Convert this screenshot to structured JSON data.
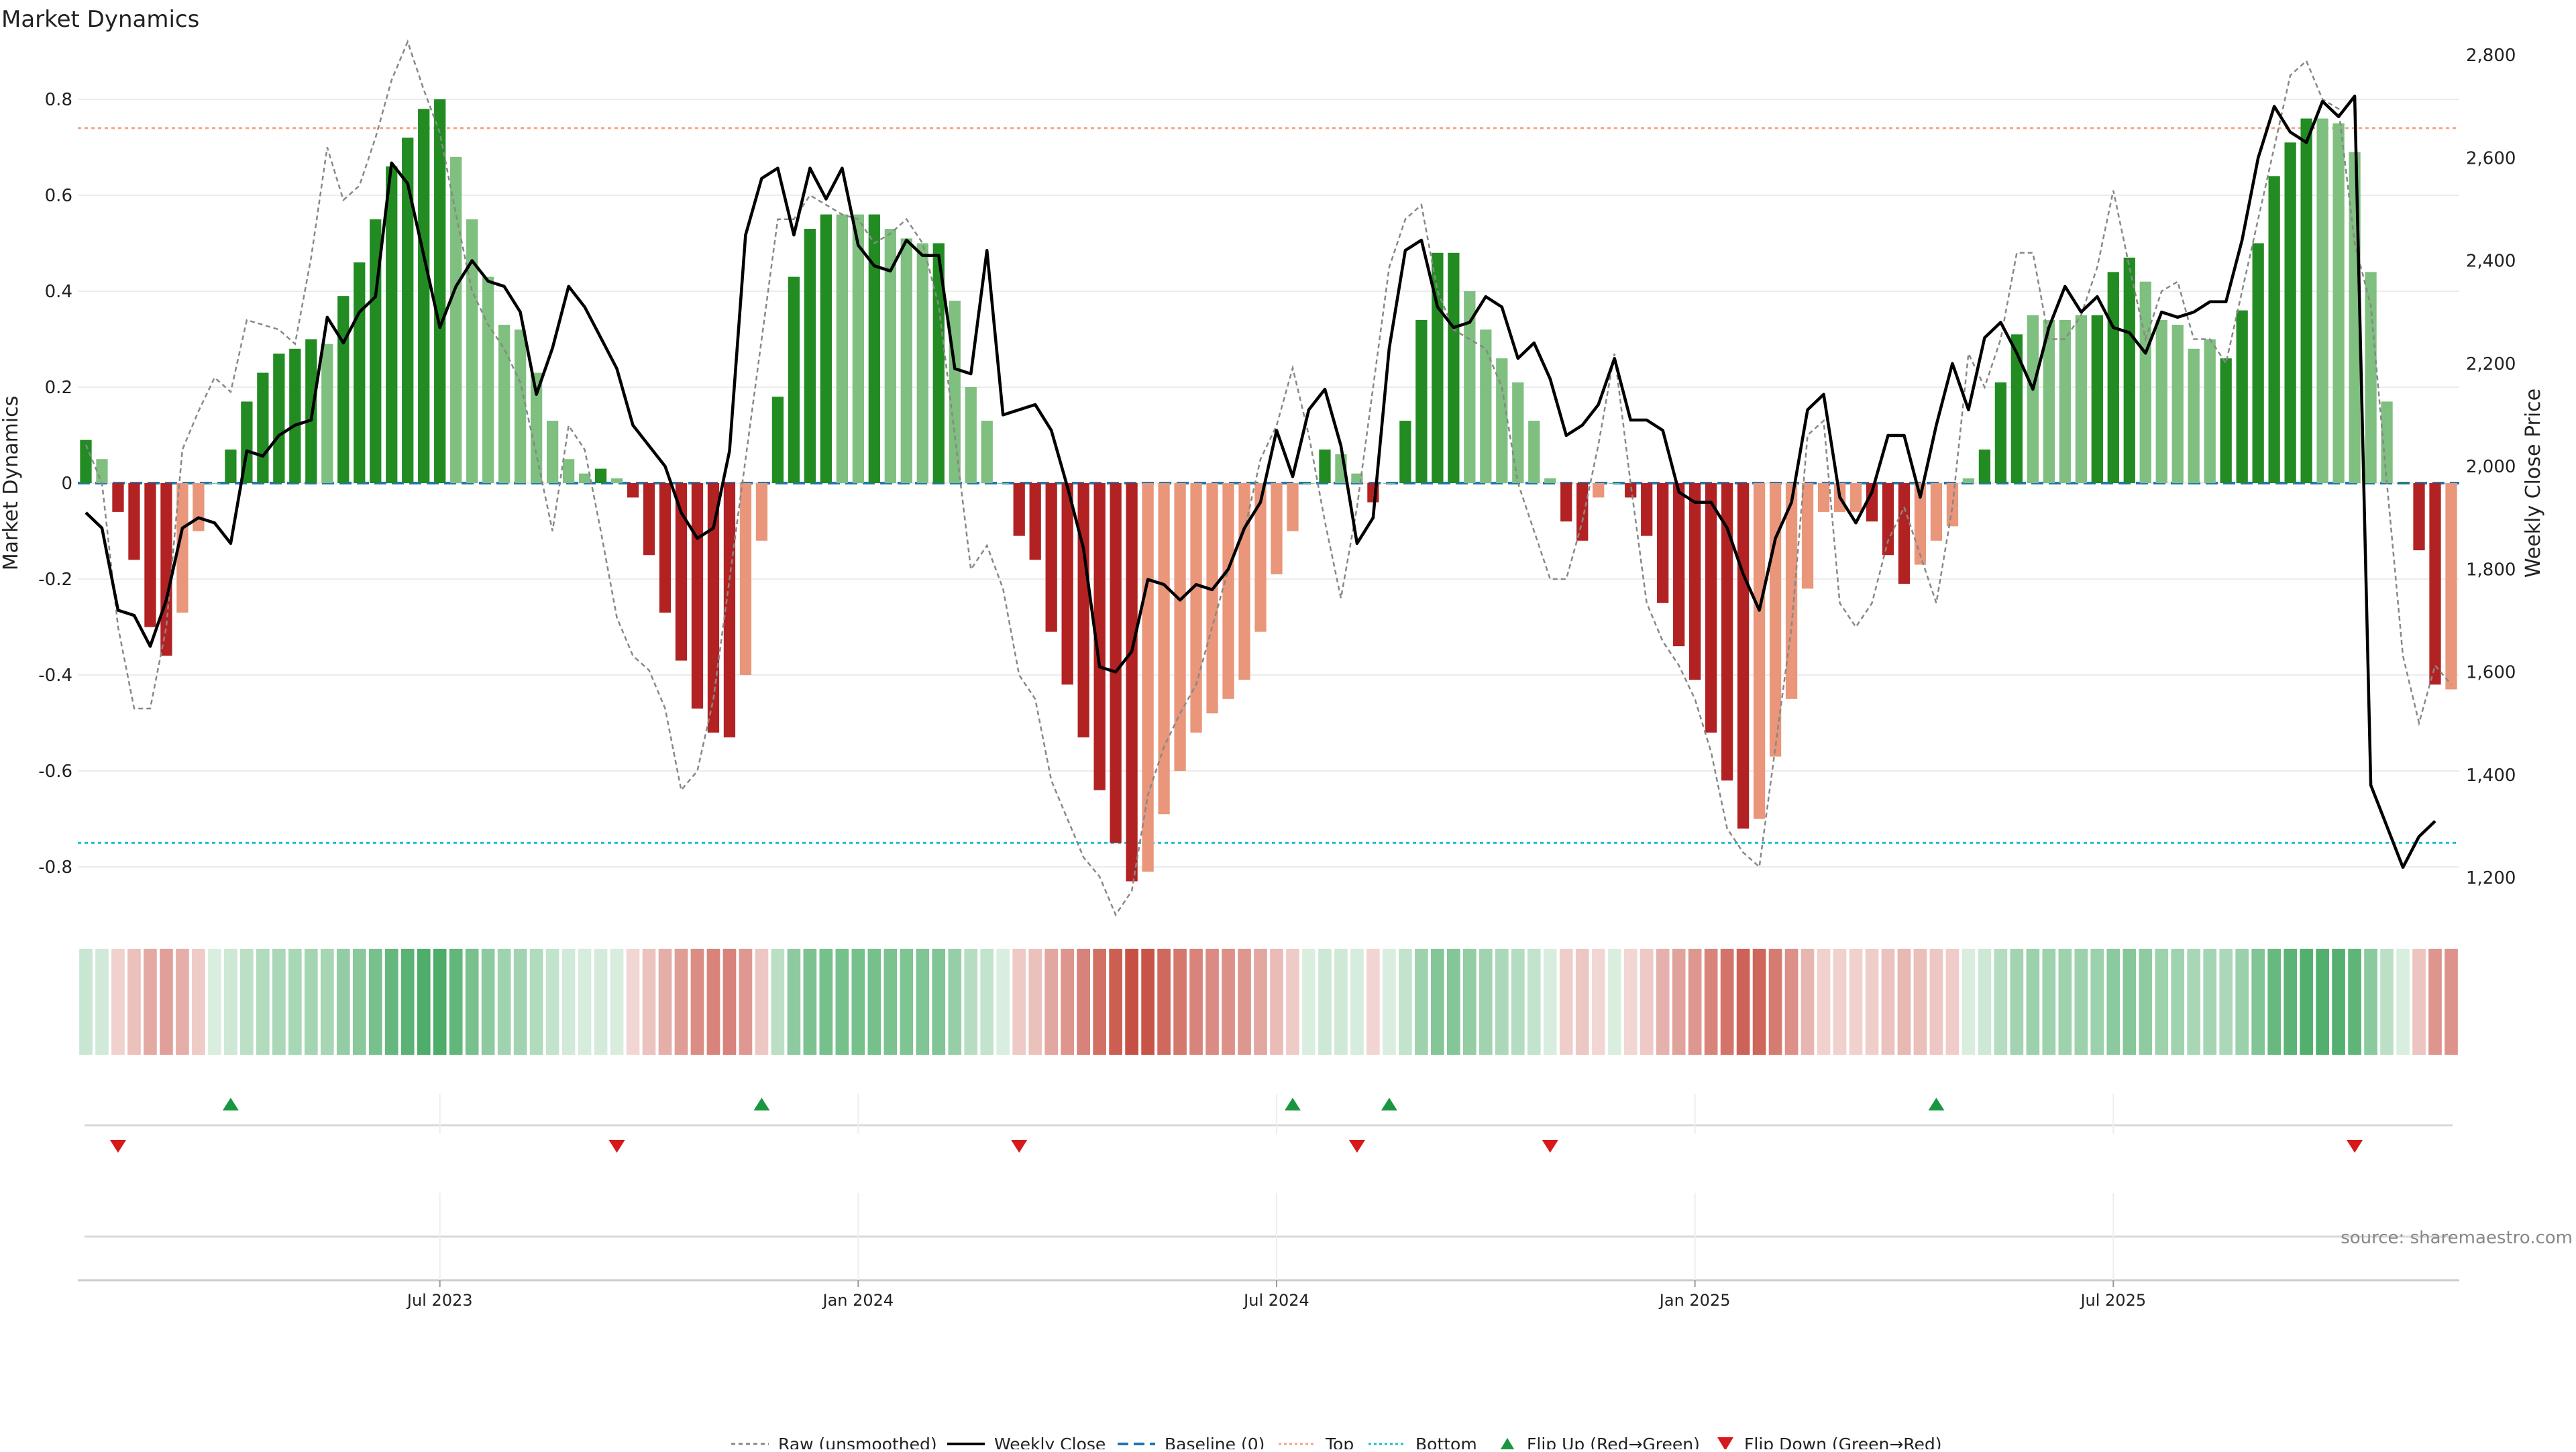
{
  "title": "Market Dynamics",
  "source_note": "source: sharemaestro.com",
  "colors": {
    "strong_green": "#228B22",
    "light_green": "#7FBF7F",
    "strong_red": "#B22222",
    "light_red": "#E9967A",
    "price_line": "#000000",
    "raw_line": "#888888",
    "baseline": "#1f77b4",
    "top": "#F4A582",
    "bottom": "#17BECF",
    "flip_up": "#1A9641",
    "flip_down": "#D7191C"
  },
  "legend": {
    "raw": "Raw (unsmoothed)",
    "weekly_close": "Weekly Close",
    "baseline": "Baseline (0)",
    "top": "Top",
    "bottom": "Bottom",
    "flip_up": "Flip Up (Red→Green)",
    "flip_down": "Flip Down (Green→Red)"
  },
  "chart_data": {
    "type": "bar",
    "title": "Market Dynamics",
    "ylabel": "Market Dynamics",
    "y2label": "Weekly Close Price",
    "ylim": [
      -0.9,
      0.9
    ],
    "y2lim": [
      1150,
      2800
    ],
    "yticks": [
      {
        "value": 0.8,
        "label": "0.8"
      },
      {
        "value": 0.6,
        "label": "0.6"
      },
      {
        "value": 0.4,
        "label": "0.4"
      },
      {
        "value": 0.2,
        "label": "0.2"
      },
      {
        "value": 0,
        "label": "0"
      },
      {
        "value": -0.2,
        "label": "-0.2"
      },
      {
        "value": -0.4,
        "label": "-0.4"
      },
      {
        "value": -0.6,
        "label": "-0.6"
      },
      {
        "value": -0.8,
        "label": "-0.8"
      }
    ],
    "y2ticks": [
      {
        "value": 2800,
        "label": "2,800"
      },
      {
        "value": 2600,
        "label": "2,600"
      },
      {
        "value": 2400,
        "label": "2,400"
      },
      {
        "value": 2200,
        "label": "2,200"
      },
      {
        "value": 2000,
        "label": "2,000"
      },
      {
        "value": 1800,
        "label": "1,800"
      },
      {
        "value": 1600,
        "label": "1,600"
      },
      {
        "value": 1400,
        "label": "1,400"
      },
      {
        "value": 1200,
        "label": "1,200"
      }
    ],
    "xticks": [
      {
        "index": 22,
        "label": "Jul 2023"
      },
      {
        "index": 48,
        "label": "Jan 2024"
      },
      {
        "index": 74,
        "label": "Jul 2024"
      },
      {
        "index": 100,
        "label": "Jan 2025"
      },
      {
        "index": 126,
        "label": "Jul 2025"
      }
    ],
    "top_level": 0.74,
    "bottom_level": -0.75,
    "baseline": 0,
    "bar_values": [
      0.09,
      0.05,
      -0.06,
      -0.16,
      -0.3,
      -0.36,
      -0.27,
      -0.1,
      0.0,
      0.07,
      0.17,
      0.23,
      0.27,
      0.28,
      0.3,
      0.29,
      0.39,
      0.46,
      0.55,
      0.66,
      0.72,
      0.78,
      0.8,
      0.68,
      0.55,
      0.43,
      0.33,
      0.32,
      0.23,
      0.13,
      0.05,
      0.02,
      0.03,
      0.01,
      -0.03,
      -0.15,
      -0.27,
      -0.37,
      -0.47,
      -0.52,
      -0.53,
      -0.4,
      -0.12,
      0.18,
      0.43,
      0.53,
      0.56,
      0.56,
      0.56,
      0.56,
      0.53,
      0.51,
      0.5,
      0.5,
      0.38,
      0.2,
      0.13,
      0.0,
      -0.11,
      -0.16,
      -0.31,
      -0.42,
      -0.53,
      -0.64,
      -0.75,
      -0.83,
      -0.81,
      -0.69,
      -0.6,
      -0.52,
      -0.48,
      -0.45,
      -0.41,
      -0.31,
      -0.19,
      -0.1,
      0.0,
      0.07,
      0.06,
      0.02,
      -0.04,
      0.0,
      0.13,
      0.34,
      0.48,
      0.48,
      0.4,
      0.32,
      0.26,
      0.21,
      0.13,
      0.01,
      -0.08,
      -0.12,
      -0.03,
      0.0,
      -0.03,
      -0.11,
      -0.25,
      -0.34,
      -0.41,
      -0.52,
      -0.62,
      -0.72,
      -0.7,
      -0.57,
      -0.45,
      -0.22,
      -0.06,
      -0.06,
      -0.06,
      -0.08,
      -0.15,
      -0.21,
      -0.17,
      -0.12,
      -0.09,
      0.01,
      0.07,
      0.21,
      0.31,
      0.35,
      0.34,
      0.34,
      0.35,
      0.35,
      0.44,
      0.47,
      0.42,
      0.34,
      0.33,
      0.28,
      0.3,
      0.26,
      0.36,
      0.5,
      0.64,
      0.71,
      0.76,
      0.76,
      0.75,
      0.69,
      0.44,
      0.17,
      0.0,
      -0.14,
      -0.42,
      -0.43
    ],
    "bar_strength": [
      1,
      0,
      1,
      1,
      1,
      1,
      0,
      0,
      0,
      1,
      1,
      1,
      1,
      1,
      1,
      0,
      1,
      1,
      1,
      1,
      1,
      1,
      1,
      0,
      0,
      0,
      0,
      0,
      0,
      0,
      0,
      0,
      1,
      0,
      1,
      1,
      1,
      1,
      1,
      1,
      1,
      0,
      0,
      1,
      1,
      1,
      1,
      0,
      0,
      1,
      0,
      0,
      0,
      1,
      0,
      0,
      0,
      0,
      1,
      1,
      1,
      1,
      1,
      1,
      1,
      1,
      0,
      0,
      0,
      0,
      0,
      0,
      0,
      0,
      0,
      0,
      0,
      1,
      0,
      0,
      1,
      0,
      1,
      1,
      1,
      1,
      0,
      0,
      0,
      0,
      0,
      0,
      1,
      1,
      0,
      0,
      1,
      1,
      1,
      1,
      1,
      1,
      1,
      1,
      0,
      0,
      0,
      0,
      0,
      0,
      0,
      1,
      1,
      1,
      0,
      0,
      0,
      0,
      1,
      1,
      1,
      0,
      0,
      0,
      0,
      1,
      1,
      1,
      0,
      0,
      0,
      0,
      0,
      1,
      1,
      1,
      1,
      1,
      1,
      0,
      0,
      0,
      0,
      0,
      1,
      1,
      1
    ],
    "raw_values": [
      0.08,
      0.0,
      -0.3,
      -0.47,
      -0.47,
      -0.3,
      0.07,
      0.15,
      0.22,
      0.19,
      0.34,
      0.33,
      0.32,
      0.29,
      0.47,
      0.7,
      0.59,
      0.62,
      0.72,
      0.84,
      0.92,
      0.82,
      0.73,
      0.56,
      0.4,
      0.33,
      0.28,
      0.21,
      0.06,
      -0.1,
      0.12,
      0.07,
      -0.1,
      -0.28,
      -0.36,
      -0.39,
      -0.47,
      -0.64,
      -0.6,
      -0.45,
      -0.2,
      0.05,
      0.3,
      0.55,
      0.55,
      0.6,
      0.58,
      0.56,
      0.55,
      0.5,
      0.52,
      0.55,
      0.5,
      0.37,
      0.1,
      -0.18,
      -0.13,
      -0.22,
      -0.4,
      -0.45,
      -0.62,
      -0.7,
      -0.78,
      -0.82,
      -0.9,
      -0.85,
      -0.65,
      -0.55,
      -0.48,
      -0.42,
      -0.3,
      -0.18,
      -0.1,
      0.05,
      0.12,
      0.24,
      0.1,
      -0.08,
      -0.24,
      -0.05,
      0.2,
      0.45,
      0.55,
      0.58,
      0.4,
      0.32,
      0.3,
      0.28,
      0.2,
      0.0,
      -0.1,
      -0.2,
      -0.2,
      -0.08,
      0.08,
      0.27,
      0.0,
      -0.25,
      -0.33,
      -0.38,
      -0.45,
      -0.56,
      -0.72,
      -0.77,
      -0.8,
      -0.55,
      -0.3,
      0.1,
      0.13,
      -0.25,
      -0.3,
      -0.25,
      -0.12,
      -0.05,
      -0.15,
      -0.25,
      -0.05,
      0.27,
      0.2,
      0.3,
      0.48,
      0.48,
      0.3,
      0.3,
      0.35,
      0.45,
      0.61,
      0.45,
      0.3,
      0.4,
      0.42,
      0.3,
      0.3,
      0.25,
      0.4,
      0.55,
      0.7,
      0.85,
      0.88,
      0.8,
      0.78,
      0.5,
      0.37,
      0.0,
      -0.36,
      -0.5,
      -0.38,
      -0.42
    ],
    "price_values": [
      1910,
      1880,
      1720,
      1710,
      1650,
      1740,
      1880,
      1900,
      1890,
      1850,
      2030,
      2020,
      2060,
      2080,
      2090,
      2290,
      2240,
      2300,
      2330,
      2590,
      2550,
      2410,
      2270,
      2350,
      2400,
      2360,
      2350,
      2300,
      2140,
      2230,
      2350,
      2310,
      2250,
      2190,
      2080,
      2040,
      2000,
      1910,
      1860,
      1880,
      2030,
      2450,
      2560,
      2580,
      2450,
      2580,
      2520,
      2580,
      2430,
      2390,
      2380,
      2440,
      2410,
      2410,
      2190,
      2180,
      2420,
      2100,
      2110,
      2120,
      2070,
      1960,
      1840,
      1610,
      1600,
      1640,
      1780,
      1770,
      1740,
      1770,
      1760,
      1800,
      1880,
      1930,
      2070,
      1980,
      2110,
      2150,
      2040,
      1850,
      1900,
      2230,
      2420,
      2440,
      2310,
      2270,
      2280,
      2330,
      2310,
      2210,
      2240,
      2170,
      2060,
      2080,
      2120,
      2210,
      2090,
      2090,
      2070,
      1950,
      1930,
      1930,
      1880,
      1790,
      1720,
      1860,
      1930,
      2110,
      2140,
      1940,
      1890,
      1950,
      2060,
      2060,
      1940,
      2080,
      2200,
      2110,
      2250,
      2280,
      2220,
      2150,
      2270,
      2350,
      2300,
      2330,
      2270,
      2260,
      2220,
      2300,
      2290,
      2300,
      2320,
      2320,
      2440,
      2600,
      2700,
      2650,
      2630,
      2710,
      2680,
      2720,
      1380,
      1300,
      1220,
      1280,
      1310
    ]
  },
  "heatmap": {
    "description_levels": "per-week intensity of the same series"
  },
  "flip_markers": {
    "up": [
      9,
      42,
      75,
      81,
      115
    ],
    "down": [
      2,
      33,
      58,
      79,
      91,
      141
    ]
  }
}
